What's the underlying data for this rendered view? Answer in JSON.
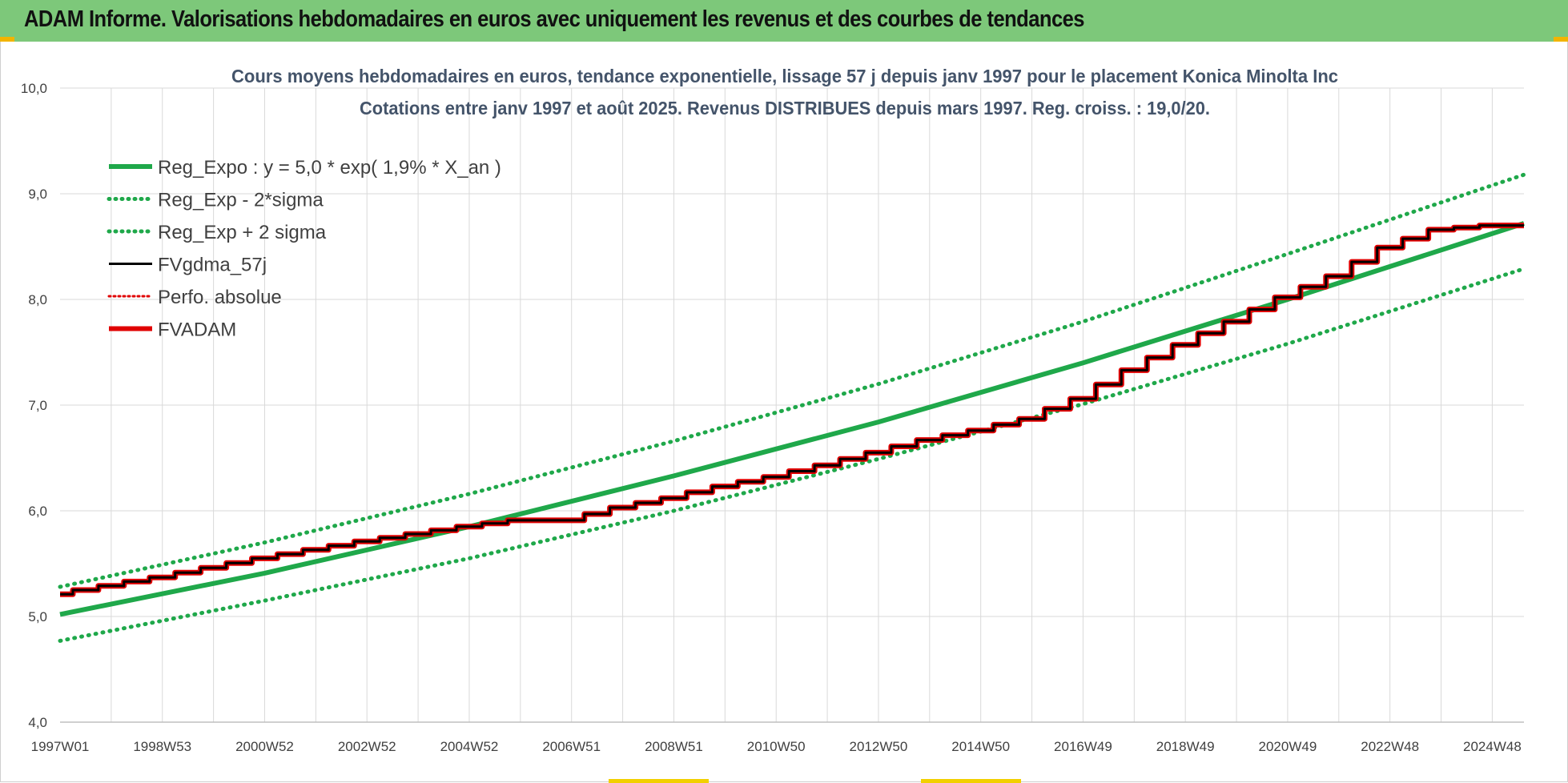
{
  "banner": {
    "title": "ADAM Informe. Valorisations hebdomadaires en euros avec uniquement les revenus et des courbes de tendances"
  },
  "chart_data": {
    "type": "line",
    "title": "Cours moyens hebdomadaires en euros, tendance exponentielle, lissage 57 j depuis janv 1997 pour le placement Konica Minolta Inc",
    "subtitle": "Cotations entre janv 1997 et août 2025. Revenus DISTRIBUES depuis mars 1997. Reg. croiss. : 19,0/20.",
    "xlabel": "",
    "ylabel": "",
    "x_range": [
      1997.0,
      2025.62
    ],
    "ylim": [
      4.0,
      10.0
    ],
    "y_ticks": [
      "4,0",
      "5,0",
      "6,0",
      "7,0",
      "8,0",
      "9,0",
      "10,0"
    ],
    "x_ticks": [
      {
        "label": "1997W01",
        "x": 1997.0
      },
      {
        "label": "1998W53",
        "x": 1999.0
      },
      {
        "label": "2000W52",
        "x": 2001.0
      },
      {
        "label": "2002W52",
        "x": 2003.0
      },
      {
        "label": "2004W52",
        "x": 2005.0
      },
      {
        "label": "2006W51",
        "x": 2007.0
      },
      {
        "label": "2008W51",
        "x": 2009.0
      },
      {
        "label": "2010W50",
        "x": 2011.0
      },
      {
        "label": "2012W50",
        "x": 2013.0
      },
      {
        "label": "2014W50",
        "x": 2015.0
      },
      {
        "label": "2016W49",
        "x": 2017.0
      },
      {
        "label": "2018W49",
        "x": 2019.0
      },
      {
        "label": "2020W49",
        "x": 2021.0
      },
      {
        "label": "2022W48",
        "x": 2023.0
      },
      {
        "label": "2024W48",
        "x": 2025.0
      }
    ],
    "grid": true,
    "legend_position": "top-left",
    "series": [
      {
        "name": "Reg_Expo : y = 5,0 * exp( 1,9% *  X_an )",
        "color": "#1fa84a",
        "style": "solid",
        "x": [
          1997.0,
          2001.0,
          2005.0,
          2009.0,
          2013.0,
          2017.0,
          2021.0,
          2025.62
        ],
        "y": [
          5.02,
          5.41,
          5.85,
          6.33,
          6.84,
          7.4,
          8.0,
          8.72
        ]
      },
      {
        "name": "Reg_Exp - 2*sigma",
        "color": "#1fa84a",
        "style": "dotted",
        "x": [
          1997.0,
          2001.0,
          2005.0,
          2009.0,
          2013.0,
          2017.0,
          2021.0,
          2025.62
        ],
        "y": [
          4.77,
          5.15,
          5.55,
          6.0,
          6.49,
          7.01,
          7.58,
          8.29
        ]
      },
      {
        "name": "Reg_Exp + 2 sigma",
        "color": "#1fa84a",
        "style": "dotted",
        "x": [
          1997.0,
          2001.0,
          2005.0,
          2009.0,
          2013.0,
          2017.0,
          2021.0,
          2025.62
        ],
        "y": [
          5.28,
          5.7,
          6.16,
          6.66,
          7.2,
          7.79,
          8.43,
          9.18
        ]
      },
      {
        "name": "FVgdma_57j",
        "color": "#000000",
        "style": "solid",
        "width": 3,
        "x": [
          1997.0,
          1998.0,
          1999.0,
          2000.0,
          2001.0,
          2002.0,
          2003.0,
          2004.0,
          2005.0,
          2006.0,
          2007.0,
          2008.0,
          2009.0,
          2010.0,
          2011.0,
          2012.0,
          2013.0,
          2014.0,
          2015.0,
          2016.0,
          2017.0,
          2018.0,
          2019.0,
          2020.0,
          2021.0,
          2022.0,
          2023.0,
          2024.0,
          2025.0,
          2025.62
        ],
        "y": [
          5.21,
          5.29,
          5.37,
          5.46,
          5.55,
          5.63,
          5.71,
          5.78,
          5.85,
          5.91,
          5.91,
          6.03,
          6.12,
          6.23,
          6.32,
          6.43,
          6.55,
          6.67,
          6.76,
          6.87,
          7.06,
          7.33,
          7.57,
          7.79,
          8.02,
          8.22,
          8.49,
          8.66,
          8.7,
          8.7
        ]
      },
      {
        "name": "Perfo. absolue",
        "color": "#e00000",
        "style": "dotted",
        "x": [
          1997.0,
          2001.0,
          2005.0,
          2009.0,
          2013.0,
          2017.0,
          2021.0,
          2025.62
        ],
        "y": [
          5.21,
          5.55,
          5.85,
          6.03,
          6.55,
          7.06,
          8.02,
          8.7
        ]
      },
      {
        "name": "FVADAM",
        "color": "#e00000",
        "style": "solid",
        "width": 7,
        "x": [
          1997.0,
          1998.0,
          1999.0,
          2000.0,
          2001.0,
          2002.0,
          2003.0,
          2004.0,
          2005.0,
          2006.0,
          2007.0,
          2008.0,
          2009.0,
          2010.0,
          2011.0,
          2012.0,
          2013.0,
          2014.0,
          2015.0,
          2016.0,
          2017.0,
          2018.0,
          2019.0,
          2020.0,
          2021.0,
          2022.0,
          2023.0,
          2024.0,
          2025.0,
          2025.62
        ],
        "y": [
          5.21,
          5.29,
          5.37,
          5.46,
          5.55,
          5.63,
          5.71,
          5.78,
          5.85,
          5.91,
          5.91,
          6.03,
          6.12,
          6.23,
          6.32,
          6.43,
          6.55,
          6.67,
          6.76,
          6.87,
          7.06,
          7.33,
          7.57,
          7.79,
          8.02,
          8.22,
          8.49,
          8.66,
          8.7,
          8.7
        ]
      }
    ]
  }
}
